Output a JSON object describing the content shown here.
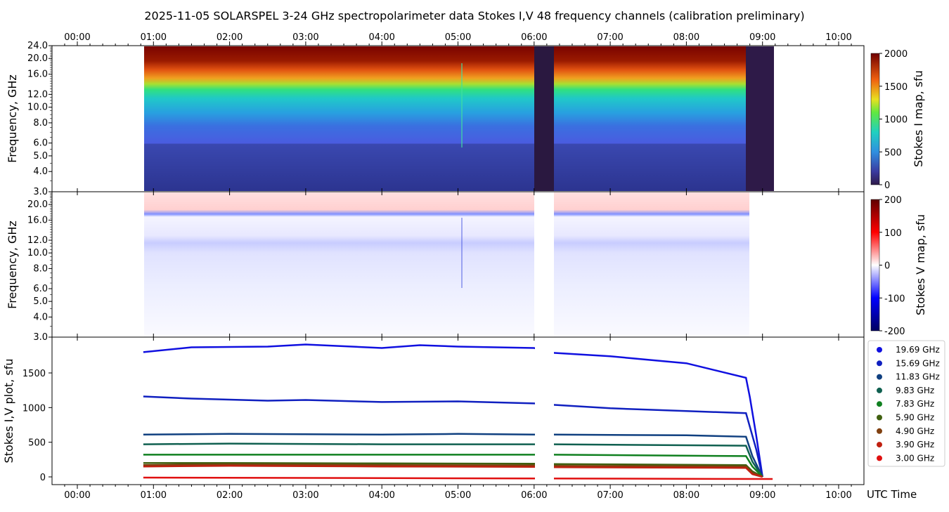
{
  "title": "2025-11-05  SOLARSPEL  3-24 GHz spectropolarimeter data   Stokes I,V   48 frequency channels   (calibration preliminary)",
  "time_ticks": [
    "00:00",
    "01:00",
    "02:00",
    "03:00",
    "04:00",
    "05:00",
    "06:00",
    "07:00",
    "08:00",
    "09:00",
    "10:00"
  ],
  "freq_ticks": [
    "3.0",
    "4.0",
    "5.0",
    "6.0",
    "8.0",
    "10.0",
    "12.0",
    "16.0",
    "20.0",
    "24.0"
  ],
  "freq_ticks_v": [
    "3.0",
    "4.0",
    "5.0",
    "6.0",
    "8.0",
    "10.0",
    "12.0",
    "16.0",
    "20.0"
  ],
  "panels": {
    "stokes_i": {
      "ylabel": "Frequency, GHz",
      "cbar_label": "Stokes I map, sfu",
      "cbar_ticks": [
        "0",
        "500",
        "1000",
        "1500",
        "2000"
      ]
    },
    "stokes_v": {
      "ylabel": "Frequency, GHz",
      "cbar_label": "Stokes V map, sfu",
      "cbar_ticks": [
        "-200",
        "-100",
        "0",
        "100",
        "200"
      ]
    },
    "plot": {
      "ylabel": "Stokes I,V plot, sfu",
      "xlabel": "UTC Time",
      "yticks": [
        "0",
        "500",
        "1000",
        "1500"
      ]
    }
  },
  "colors": {
    "I_low": "#3a3a8c",
    "I_mid": "#1fb5d8",
    "I_green": "#3fe060",
    "I_yellow": "#e8d020",
    "I_high": "#7a0800",
    "V_pos": "#ff9090",
    "V_neg": "#4050e0"
  },
  "chart_data": [
    {
      "type": "heatmap",
      "name": "Stokes I map",
      "x_range": [
        "00:52",
        "09:08"
      ],
      "y_axis": "log frequency, GHz",
      "ylim": [
        3.0,
        24.0
      ],
      "clim": [
        0,
        2000
      ],
      "gaps_utc": [
        [
          "06:00",
          "06:15"
        ],
        [
          "08:47",
          "09:08"
        ]
      ]
    },
    {
      "type": "heatmap",
      "name": "Stokes V map",
      "x_range": [
        "00:52",
        "09:08"
      ],
      "ylim": [
        3.0,
        24.0
      ],
      "clim": [
        -200,
        200
      ]
    },
    {
      "type": "scatter",
      "ylim": [
        -100,
        1950
      ],
      "series": [
        {
          "name": "19.69 GHz",
          "color": "#1010e0",
          "points": [
            [
              "00:52",
              1800
            ],
            [
              "01:30",
              1870
            ],
            [
              "02:30",
              1880
            ],
            [
              "03:00",
              1910
            ],
            [
              "04:00",
              1860
            ],
            [
              "04:30",
              1900
            ],
            [
              "05:00",
              1880
            ],
            [
              "06:00",
              1860
            ],
            [
              "06:15",
              1790
            ],
            [
              "07:00",
              1740
            ],
            [
              "08:00",
              1640
            ],
            [
              "08:47",
              1430
            ],
            [
              "08:50",
              1150
            ],
            [
              "08:55",
              600
            ],
            [
              "09:00",
              0
            ]
          ]
        },
        {
          "name": "15.69 GHz",
          "color": "#1020c0",
          "points": [
            [
              "00:52",
              1160
            ],
            [
              "01:30",
              1130
            ],
            [
              "02:30",
              1100
            ],
            [
              "03:00",
              1110
            ],
            [
              "04:00",
              1080
            ],
            [
              "05:00",
              1090
            ],
            [
              "06:00",
              1060
            ],
            [
              "06:15",
              1040
            ],
            [
              "07:00",
              990
            ],
            [
              "08:00",
              950
            ],
            [
              "08:47",
              920
            ],
            [
              "08:55",
              400
            ],
            [
              "09:00",
              0
            ]
          ]
        },
        {
          "name": "11.83 GHz",
          "color": "#104080",
          "points": [
            [
              "00:52",
              610
            ],
            [
              "02:00",
              620
            ],
            [
              "04:00",
              610
            ],
            [
              "05:00",
              620
            ],
            [
              "06:00",
              610
            ],
            [
              "06:15",
              610
            ],
            [
              "08:00",
              600
            ],
            [
              "08:47",
              580
            ],
            [
              "08:52",
              300
            ],
            [
              "09:00",
              0
            ]
          ]
        },
        {
          "name": "9.83 GHz",
          "color": "#106050",
          "points": [
            [
              "00:52",
              470
            ],
            [
              "02:00",
              480
            ],
            [
              "04:00",
              470
            ],
            [
              "06:00",
              470
            ],
            [
              "06:15",
              470
            ],
            [
              "08:47",
              450
            ],
            [
              "08:52",
              220
            ],
            [
              "09:00",
              0
            ]
          ]
        },
        {
          "name": "7.83 GHz",
          "color": "#108020",
          "points": [
            [
              "00:52",
              320
            ],
            [
              "02:00",
              320
            ],
            [
              "04:00",
              320
            ],
            [
              "06:00",
              320
            ],
            [
              "06:15",
              320
            ],
            [
              "08:47",
              300
            ],
            [
              "08:52",
              150
            ],
            [
              "09:00",
              0
            ]
          ]
        },
        {
          "name": "5.90 GHz",
          "color": "#406010",
          "points": [
            [
              "00:52",
              200
            ],
            [
              "02:00",
              200
            ],
            [
              "04:00",
              195
            ],
            [
              "06:00",
              190
            ],
            [
              "06:15",
              185
            ],
            [
              "08:47",
              170
            ],
            [
              "08:52",
              80
            ],
            [
              "09:00",
              0
            ]
          ]
        },
        {
          "name": "4.90 GHz",
          "color": "#804010",
          "points": [
            [
              "00:52",
              170
            ],
            [
              "02:00",
              180
            ],
            [
              "04:00",
              170
            ],
            [
              "06:00",
              165
            ],
            [
              "06:15",
              160
            ],
            [
              "08:47",
              150
            ],
            [
              "08:52",
              60
            ],
            [
              "09:00",
              0
            ]
          ]
        },
        {
          "name": "3.90 GHz",
          "color": "#c02010",
          "points": [
            [
              "00:52",
              150
            ],
            [
              "02:00",
              160
            ],
            [
              "04:00",
              150
            ],
            [
              "06:00",
              145
            ],
            [
              "06:15",
              140
            ],
            [
              "08:47",
              130
            ],
            [
              "08:52",
              40
            ],
            [
              "09:00",
              0
            ]
          ]
        },
        {
          "name": "3.00 GHz",
          "color": "#e01010",
          "points": [
            [
              "00:52",
              -10
            ],
            [
              "09:08",
              -30
            ]
          ]
        }
      ]
    }
  ]
}
